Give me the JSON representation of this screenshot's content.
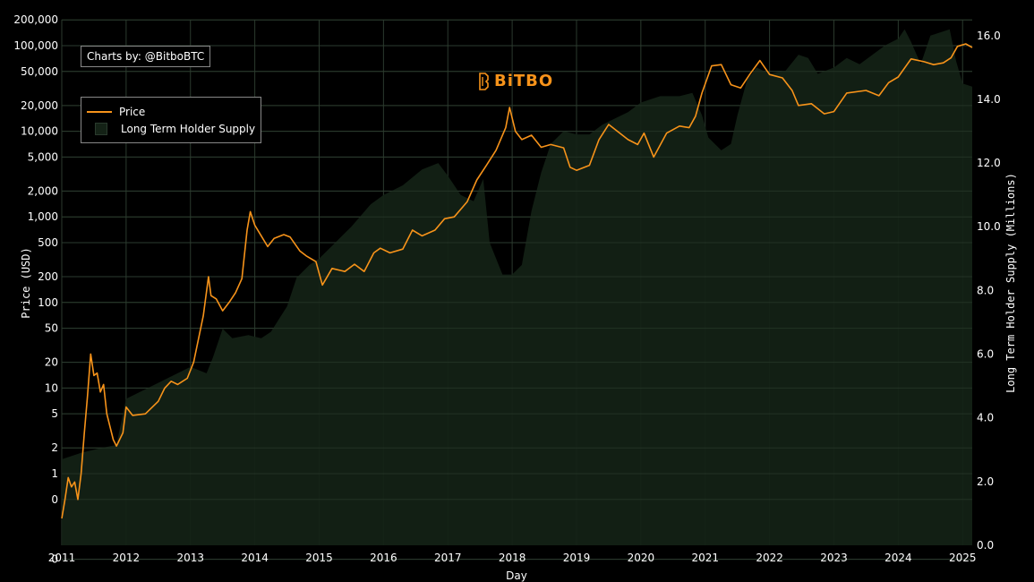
{
  "credit": "Charts by: @BitboBTC",
  "logo": {
    "text": "BiTBO",
    "color": "#f7931a"
  },
  "colors": {
    "price": "#f7931a",
    "supply": "#142216",
    "grid": "#2b3a2e",
    "background": "#000000"
  },
  "chart_data": {
    "type": "line",
    "xlabel": "Day",
    "ylabel_left": "Price (USD)",
    "ylabel_right": "Long Term Holder Supply (Millions)",
    "x_ticks": [
      "2011",
      "2012",
      "2013",
      "2014",
      "2015",
      "2016",
      "2017",
      "2018",
      "2019",
      "2020",
      "2021",
      "2022",
      "2023",
      "2024",
      "2025"
    ],
    "xlim": [
      2011.0,
      2025.15
    ],
    "left_axis": {
      "scale": "log",
      "ticks": [
        {
          "v": 0.1,
          "label": "0"
        },
        {
          "v": 0.5,
          "label": "0"
        },
        {
          "v": 1,
          "label": "1"
        },
        {
          "v": 2,
          "label": "2"
        },
        {
          "v": 5,
          "label": "5"
        },
        {
          "v": 10,
          "label": "10"
        },
        {
          "v": 20,
          "label": "20"
        },
        {
          "v": 50,
          "label": "50"
        },
        {
          "v": 100,
          "label": "100"
        },
        {
          "v": 200,
          "label": "200"
        },
        {
          "v": 500,
          "label": "500"
        },
        {
          "v": 1000,
          "label": "1,000"
        },
        {
          "v": 2000,
          "label": "2,000"
        },
        {
          "v": 5000,
          "label": "5,000"
        },
        {
          "v": 10000,
          "label": "10,000"
        },
        {
          "v": 20000,
          "label": "20,000"
        },
        {
          "v": 50000,
          "label": "50,000"
        },
        {
          "v": 100000,
          "label": "100,000"
        },
        {
          "v": 200000,
          "label": "200,000"
        }
      ]
    },
    "right_axis": {
      "scale": "linear",
      "ylim": [
        0,
        16.5
      ],
      "ticks": [
        "0.0",
        "2.0",
        "4.0",
        "6.0",
        "8.0",
        "10.0",
        "12.0",
        "14.0",
        "16.0"
      ]
    },
    "legend": {
      "placement": "top-left",
      "entries": [
        "Price",
        "Long Term Holder Supply"
      ]
    },
    "grid": true,
    "series": [
      {
        "name": "Price",
        "axis": "left",
        "style": "line",
        "points": [
          [
            2011.0,
            0.3
          ],
          [
            2011.05,
            0.5
          ],
          [
            2011.1,
            0.9
          ],
          [
            2011.15,
            0.7
          ],
          [
            2011.2,
            0.8
          ],
          [
            2011.25,
            0.5
          ],
          [
            2011.3,
            1.0
          ],
          [
            2011.35,
            3.0
          ],
          [
            2011.4,
            8.0
          ],
          [
            2011.45,
            25
          ],
          [
            2011.5,
            14
          ],
          [
            2011.55,
            15
          ],
          [
            2011.6,
            9
          ],
          [
            2011.65,
            11
          ],
          [
            2011.7,
            5
          ],
          [
            2011.8,
            2.5
          ],
          [
            2011.85,
            2.1
          ],
          [
            2011.95,
            3.0
          ],
          [
            2012.0,
            6.0
          ],
          [
            2012.1,
            4.8
          ],
          [
            2012.3,
            5.0
          ],
          [
            2012.5,
            7.0
          ],
          [
            2012.6,
            10
          ],
          [
            2012.7,
            12
          ],
          [
            2012.8,
            11
          ],
          [
            2012.95,
            13
          ],
          [
            2013.05,
            20
          ],
          [
            2013.2,
            70
          ],
          [
            2013.28,
            200
          ],
          [
            2013.32,
            120
          ],
          [
            2013.4,
            110
          ],
          [
            2013.5,
            80
          ],
          [
            2013.6,
            100
          ],
          [
            2013.7,
            130
          ],
          [
            2013.8,
            190
          ],
          [
            2013.88,
            700
          ],
          [
            2013.93,
            1150
          ],
          [
            2014.0,
            800
          ],
          [
            2014.1,
            600
          ],
          [
            2014.2,
            450
          ],
          [
            2014.3,
            560
          ],
          [
            2014.45,
            620
          ],
          [
            2014.55,
            580
          ],
          [
            2014.7,
            400
          ],
          [
            2014.8,
            350
          ],
          [
            2014.95,
            300
          ],
          [
            2015.05,
            160
          ],
          [
            2015.2,
            250
          ],
          [
            2015.4,
            230
          ],
          [
            2015.55,
            280
          ],
          [
            2015.7,
            230
          ],
          [
            2015.85,
            380
          ],
          [
            2015.95,
            430
          ],
          [
            2016.1,
            380
          ],
          [
            2016.3,
            420
          ],
          [
            2016.45,
            700
          ],
          [
            2016.6,
            600
          ],
          [
            2016.8,
            700
          ],
          [
            2016.95,
            950
          ],
          [
            2017.1,
            1000
          ],
          [
            2017.3,
            1500
          ],
          [
            2017.45,
            2700
          ],
          [
            2017.6,
            4000
          ],
          [
            2017.75,
            6000
          ],
          [
            2017.9,
            11000
          ],
          [
            2017.96,
            19000
          ],
          [
            2018.05,
            10000
          ],
          [
            2018.15,
            8000
          ],
          [
            2018.3,
            9000
          ],
          [
            2018.45,
            6500
          ],
          [
            2018.6,
            7000
          ],
          [
            2018.8,
            6400
          ],
          [
            2018.9,
            3800
          ],
          [
            2019.0,
            3500
          ],
          [
            2019.2,
            4000
          ],
          [
            2019.35,
            8000
          ],
          [
            2019.5,
            12000
          ],
          [
            2019.6,
            10500
          ],
          [
            2019.8,
            8000
          ],
          [
            2019.95,
            7000
          ],
          [
            2020.05,
            9500
          ],
          [
            2020.2,
            5000
          ],
          [
            2020.4,
            9500
          ],
          [
            2020.6,
            11500
          ],
          [
            2020.75,
            11000
          ],
          [
            2020.85,
            15000
          ],
          [
            2020.95,
            28000
          ],
          [
            2021.1,
            58000
          ],
          [
            2021.25,
            60000
          ],
          [
            2021.4,
            35000
          ],
          [
            2021.55,
            32000
          ],
          [
            2021.7,
            47000
          ],
          [
            2021.85,
            67000
          ],
          [
            2022.0,
            46000
          ],
          [
            2022.2,
            42000
          ],
          [
            2022.35,
            30000
          ],
          [
            2022.45,
            20000
          ],
          [
            2022.65,
            21000
          ],
          [
            2022.85,
            16000
          ],
          [
            2023.0,
            17000
          ],
          [
            2023.2,
            28000
          ],
          [
            2023.5,
            30000
          ],
          [
            2023.7,
            26000
          ],
          [
            2023.85,
            37000
          ],
          [
            2024.0,
            43000
          ],
          [
            2024.2,
            70000
          ],
          [
            2024.4,
            65000
          ],
          [
            2024.55,
            60000
          ],
          [
            2024.7,
            63000
          ],
          [
            2024.82,
            72000
          ],
          [
            2024.92,
            98000
          ],
          [
            2025.05,
            105000
          ],
          [
            2025.15,
            95000
          ]
        ]
      },
      {
        "name": "Long Term Holder Supply",
        "axis": "right",
        "style": "area",
        "points": [
          [
            2011.0,
            2.7
          ],
          [
            2011.3,
            2.9
          ],
          [
            2011.6,
            3.05
          ],
          [
            2011.85,
            3.15
          ],
          [
            2012.0,
            4.6
          ],
          [
            2012.3,
            4.9
          ],
          [
            2012.6,
            5.2
          ],
          [
            2013.0,
            5.6
          ],
          [
            2013.25,
            5.4
          ],
          [
            2013.35,
            5.9
          ],
          [
            2013.5,
            6.8
          ],
          [
            2013.65,
            6.5
          ],
          [
            2013.9,
            6.6
          ],
          [
            2014.1,
            6.5
          ],
          [
            2014.25,
            6.7
          ],
          [
            2014.5,
            7.5
          ],
          [
            2014.65,
            8.4
          ],
          [
            2014.85,
            8.8
          ],
          [
            2015.0,
            9.0
          ],
          [
            2015.2,
            9.4
          ],
          [
            2015.5,
            10.0
          ],
          [
            2015.8,
            10.7
          ],
          [
            2016.0,
            11.0
          ],
          [
            2016.3,
            11.3
          ],
          [
            2016.6,
            11.8
          ],
          [
            2016.85,
            12.0
          ],
          [
            2017.0,
            11.6
          ],
          [
            2017.2,
            11.0
          ],
          [
            2017.4,
            10.8
          ],
          [
            2017.55,
            11.5
          ],
          [
            2017.65,
            9.5
          ],
          [
            2017.85,
            8.5
          ],
          [
            2018.0,
            8.5
          ],
          [
            2018.15,
            8.8
          ],
          [
            2018.3,
            10.5
          ],
          [
            2018.45,
            11.7
          ],
          [
            2018.6,
            12.6
          ],
          [
            2018.8,
            13.0
          ],
          [
            2019.0,
            12.9
          ],
          [
            2019.2,
            12.9
          ],
          [
            2019.4,
            13.2
          ],
          [
            2019.6,
            13.4
          ],
          [
            2019.8,
            13.6
          ],
          [
            2020.0,
            13.9
          ],
          [
            2020.3,
            14.1
          ],
          [
            2020.6,
            14.1
          ],
          [
            2020.8,
            14.2
          ],
          [
            2020.95,
            13.5
          ],
          [
            2021.05,
            12.8
          ],
          [
            2021.25,
            12.4
          ],
          [
            2021.4,
            12.6
          ],
          [
            2021.5,
            13.5
          ],
          [
            2021.65,
            14.6
          ],
          [
            2021.8,
            15.0
          ],
          [
            2022.0,
            14.8
          ],
          [
            2022.25,
            14.9
          ],
          [
            2022.45,
            15.4
          ],
          [
            2022.6,
            15.3
          ],
          [
            2022.75,
            14.8
          ],
          [
            2023.0,
            15.0
          ],
          [
            2023.2,
            15.3
          ],
          [
            2023.4,
            15.1
          ],
          [
            2023.6,
            15.4
          ],
          [
            2023.8,
            15.7
          ],
          [
            2024.0,
            15.9
          ],
          [
            2024.1,
            16.2
          ],
          [
            2024.2,
            15.8
          ],
          [
            2024.35,
            15.1
          ],
          [
            2024.5,
            16.0
          ],
          [
            2024.65,
            16.1
          ],
          [
            2024.8,
            16.2
          ],
          [
            2024.9,
            15.2
          ],
          [
            2025.0,
            14.5
          ],
          [
            2025.15,
            14.4
          ]
        ]
      }
    ]
  }
}
